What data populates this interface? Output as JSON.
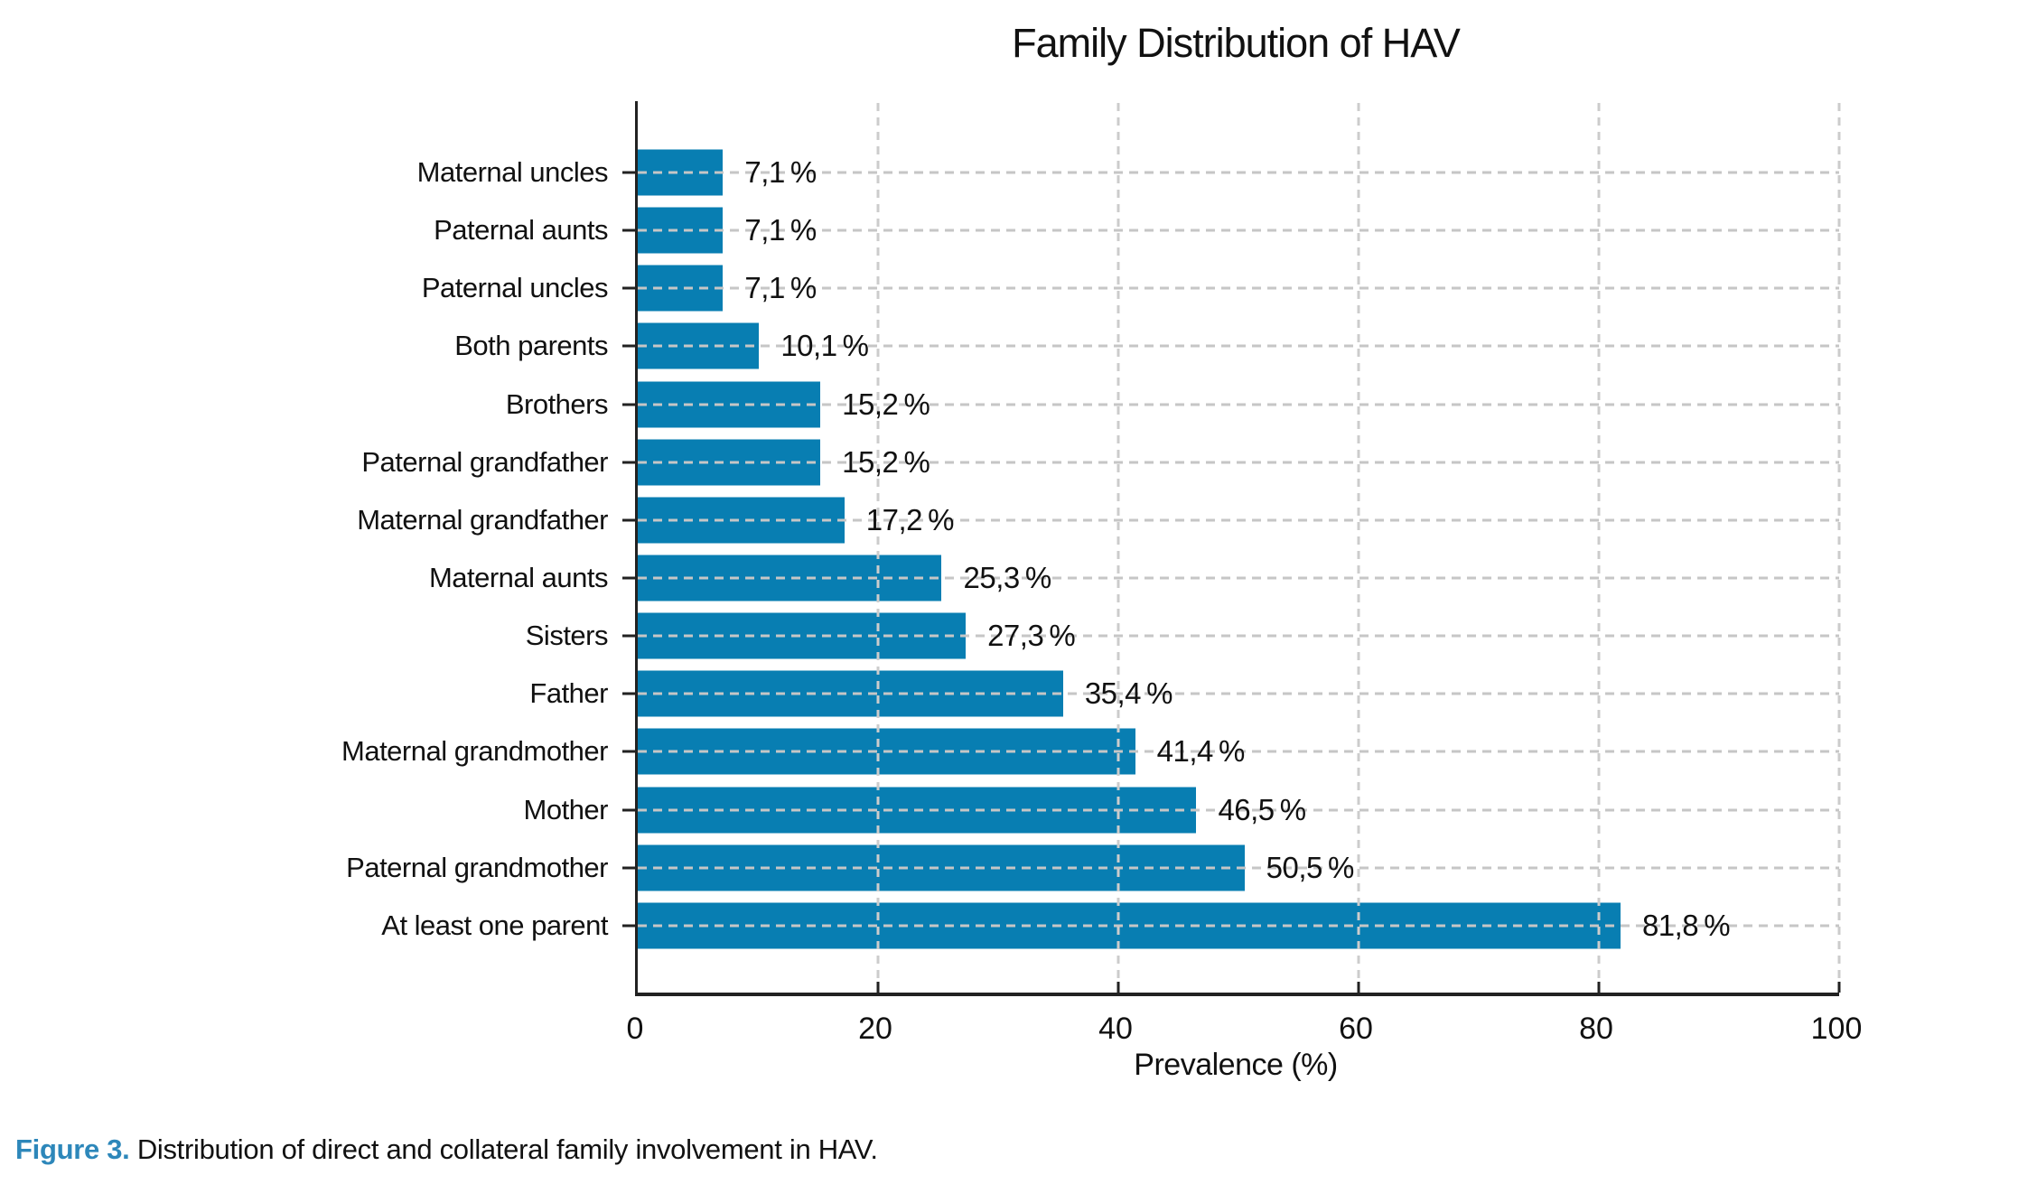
{
  "caption": {
    "prefix": "Figure 3.",
    "text": " Distribution of direct and collateral family involvement in HAV."
  },
  "colors": {
    "bar": "#087eb2",
    "grid": "#c6c6c6",
    "axis": "#222222",
    "caption_accent": "#2d87ba"
  },
  "chart_data": {
    "type": "bar",
    "orientation": "horizontal",
    "title": "Family Distribution of HAV",
    "xlabel": "Prevalence (%)",
    "xlim": [
      0,
      100
    ],
    "grid": "dashed",
    "legend": "none",
    "x_ticks": [
      0,
      20,
      40,
      60,
      80,
      100
    ],
    "categories": [
      "Maternal uncles",
      "Paternal aunts",
      "Paternal uncles",
      "Both parents",
      "Brothers",
      "Paternal grandfather",
      "Maternal grandfather",
      "Maternal aunts",
      "Sisters",
      "Father",
      "Maternal grandmother",
      "Mother",
      "Paternal grandmother",
      "At least one parent"
    ],
    "values": [
      7.1,
      7.1,
      7.1,
      10.1,
      15.2,
      15.2,
      17.2,
      25.3,
      27.3,
      35.4,
      41.4,
      46.5,
      50.5,
      81.8
    ],
    "value_labels": [
      "7,1 %",
      "7,1 %",
      "7,1 %",
      "10,1 %",
      "15,2 %",
      "15,2 %",
      "17,2 %",
      "25,3 %",
      "27,3 %",
      "35,4 %",
      "41,4 %",
      "46,5 %",
      "50,5 %",
      "81,8 %"
    ]
  }
}
